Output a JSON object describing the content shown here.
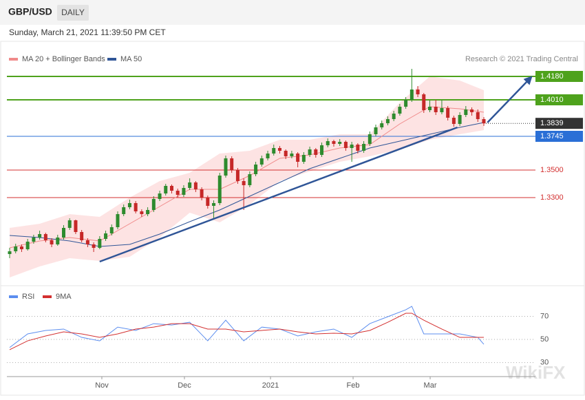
{
  "header": {
    "symbol": "GBP/USD",
    "timeframe": "DAILY",
    "datetime": "Sunday, March 21, 2021 11:39:50 PM CET"
  },
  "watermark": "WikiFX",
  "chart_data": [
    {
      "type": "candlestick",
      "source": "Research © 2021 Trading Central",
      "up_color": "#2e8b2e",
      "down_color": "#c62828",
      "xlim": [
        -0.46,
        87.6
      ],
      "ylim": [
        1.266,
        1.4435
      ],
      "open": [
        1.289,
        1.291,
        1.2945,
        1.2925,
        1.298,
        1.301,
        1.3035,
        1.299,
        1.296,
        1.301,
        1.308,
        1.3135,
        1.305,
        1.299,
        1.296,
        1.2935,
        1.3,
        1.304,
        1.3085,
        1.318,
        1.323,
        1.326,
        1.32,
        1.318,
        1.321,
        1.329,
        1.333,
        1.3385,
        1.335,
        1.332,
        1.337,
        1.341,
        1.336,
        1.33,
        1.324,
        1.326,
        1.346,
        1.3585,
        1.35,
        1.342,
        1.339,
        1.347,
        1.354,
        1.3585,
        1.362,
        1.366,
        1.364,
        1.36,
        1.362,
        1.356,
        1.361,
        1.365,
        1.361,
        1.368,
        1.371,
        1.369,
        1.3705,
        1.366,
        1.3685,
        1.364,
        1.369,
        1.376,
        1.381,
        1.384,
        1.387,
        1.391,
        1.396,
        1.401,
        1.4085,
        1.405,
        1.3935,
        1.396,
        1.392,
        1.395,
        1.388,
        1.3835,
        1.39,
        1.394,
        1.392,
        1.387
      ],
      "high": [
        1.2935,
        1.2965,
        1.296,
        1.3,
        1.303,
        1.306,
        1.3045,
        1.3005,
        1.303,
        1.31,
        1.315,
        1.314,
        1.3065,
        1.3005,
        1.2975,
        1.302,
        1.306,
        1.3105,
        1.32,
        1.325,
        1.3285,
        1.3275,
        1.3215,
        1.323,
        1.331,
        1.335,
        1.34,
        1.3395,
        1.3365,
        1.339,
        1.344,
        1.342,
        1.3375,
        1.3315,
        1.328,
        1.348,
        1.3605,
        1.36,
        1.3515,
        1.344,
        1.349,
        1.356,
        1.3605,
        1.364,
        1.3685,
        1.3675,
        1.365,
        1.364,
        1.363,
        1.363,
        1.367,
        1.366,
        1.37,
        1.373,
        1.372,
        1.3725,
        1.3715,
        1.3705,
        1.3695,
        1.371,
        1.378,
        1.383,
        1.386,
        1.389,
        1.393,
        1.398,
        1.403,
        1.4235,
        1.411,
        1.406,
        1.4005,
        1.401,
        1.401,
        1.3965,
        1.3895,
        1.392,
        1.3965,
        1.3955,
        1.394,
        1.3885
      ],
      "low": [
        1.286,
        1.2895,
        1.2905,
        1.2915,
        1.2965,
        1.2995,
        1.2975,
        1.294,
        1.295,
        1.2995,
        1.3065,
        1.3035,
        1.2975,
        1.294,
        1.2905,
        1.2925,
        1.2985,
        1.3025,
        1.307,
        1.3165,
        1.3215,
        1.3185,
        1.316,
        1.3165,
        1.3195,
        1.3275,
        1.3315,
        1.333,
        1.33,
        1.3305,
        1.3355,
        1.334,
        1.328,
        1.322,
        1.3145,
        1.3245,
        1.3445,
        1.348,
        1.34,
        1.321,
        1.3375,
        1.3455,
        1.3525,
        1.357,
        1.3605,
        1.362,
        1.358,
        1.3585,
        1.352,
        1.3545,
        1.3595,
        1.359,
        1.3595,
        1.3665,
        1.367,
        1.3675,
        1.364,
        1.356,
        1.362,
        1.3625,
        1.3675,
        1.3745,
        1.3795,
        1.3825,
        1.3855,
        1.3895,
        1.3945,
        1.3995,
        1.403,
        1.3915,
        1.392,
        1.39,
        1.3905,
        1.386,
        1.3815,
        1.382,
        1.3885,
        1.3895,
        1.385,
        1.382
      ],
      "close": [
        1.291,
        1.2945,
        1.2925,
        1.298,
        1.301,
        1.3035,
        1.299,
        1.296,
        1.301,
        1.308,
        1.3135,
        1.305,
        1.299,
        1.296,
        1.2935,
        1.3,
        1.304,
        1.3085,
        1.318,
        1.323,
        1.326,
        1.32,
        1.318,
        1.321,
        1.329,
        1.333,
        1.3385,
        1.335,
        1.332,
        1.337,
        1.341,
        1.336,
        1.33,
        1.324,
        1.326,
        1.346,
        1.3585,
        1.35,
        1.342,
        1.339,
        1.347,
        1.354,
        1.3585,
        1.362,
        1.366,
        1.364,
        1.36,
        1.362,
        1.356,
        1.361,
        1.365,
        1.361,
        1.368,
        1.371,
        1.369,
        1.3705,
        1.366,
        1.3685,
        1.364,
        1.369,
        1.376,
        1.381,
        1.384,
        1.387,
        1.391,
        1.396,
        1.401,
        1.4085,
        1.405,
        1.3935,
        1.396,
        1.392,
        1.395,
        1.388,
        1.3835,
        1.39,
        1.394,
        1.392,
        1.387,
        1.3839
      ],
      "indicator_x": [
        0,
        5,
        10,
        15,
        20,
        25,
        30,
        35,
        40,
        45,
        50,
        55,
        60,
        65,
        70,
        75,
        79
      ],
      "band_color": "#fde3e3",
      "series": [
        {
          "name": "MA 20 + Bollinger Bands",
          "color": "#f08a8a",
          "values": [
            1.2935,
            1.2985,
            1.301,
            1.2985,
            1.311,
            1.3235,
            1.336,
            1.336,
            1.346,
            1.3585,
            1.361,
            1.366,
            1.3685,
            1.3835,
            1.396,
            1.3945,
            1.392
          ],
          "upper": [
            1.308,
            1.311,
            1.318,
            1.316,
            1.33,
            1.342,
            1.348,
            1.362,
            1.364,
            1.372,
            1.372,
            1.376,
            1.376,
            1.399,
            1.418,
            1.415,
            1.408
          ],
          "lower": [
            1.272,
            1.28,
            1.286,
            1.284,
            1.287,
            1.301,
            1.319,
            1.312,
            1.325,
            1.342,
            1.349,
            1.356,
            1.36,
            1.365,
            1.372,
            1.376,
            1.379
          ]
        },
        {
          "name": "MA 50",
          "color": "#2f5597",
          "values": [
            1.3025,
            1.301,
            1.2985,
            1.2945,
            1.296,
            1.3035,
            1.3125,
            1.321,
            1.331,
            1.341,
            1.351,
            1.3585,
            1.366,
            1.371,
            1.376,
            1.381,
            1.3845
          ]
        }
      ],
      "levels": [
        {
          "value": 1.418,
          "label": "1.4180",
          "color": "#4ea21c",
          "style": "box"
        },
        {
          "value": 1.401,
          "label": "1.4010",
          "color": "#4ea21c",
          "style": "box"
        },
        {
          "value": 1.3839,
          "color": "#333333",
          "style": "current"
        },
        {
          "value": 1.3745,
          "color": "#2a6fd6",
          "style": "box"
        },
        {
          "value": 1.35,
          "label": "1.3500",
          "color": "#d32f2f",
          "style": "text"
        },
        {
          "value": 1.33,
          "label": "1.3300",
          "color": "#d32f2f",
          "style": "text"
        }
      ],
      "trendline_color": "#2f5597",
      "trendlines": [
        {
          "x": [
            15,
            74.6
          ],
          "y": [
            1.2835,
            1.381
          ]
        },
        {
          "x": [
            79.6,
            86.9
          ],
          "y": [
            1.3845,
            1.4175
          ],
          "arrow": true
        }
      ]
    },
    {
      "type": "line",
      "xlim": [
        -0.46,
        87.6
      ],
      "ylim": [
        19,
        90.6
      ],
      "yticks": [
        30,
        50,
        70
      ],
      "xticks": [
        {
          "value": 15.36,
          "label": "Nov"
        },
        {
          "value": 29.12,
          "label": "Dec"
        },
        {
          "value": 43.46,
          "label": "2021"
        },
        {
          "value": 57.22,
          "label": "Feb"
        },
        {
          "value": 70.06,
          "label": "Mar"
        }
      ],
      "x": [
        0,
        3,
        6,
        9,
        12,
        15,
        18,
        21,
        24,
        27,
        30,
        33,
        36,
        39,
        42,
        45,
        48,
        51,
        54,
        57,
        60,
        63,
        66,
        67,
        69,
        72,
        75,
        78,
        79
      ],
      "series": [
        {
          "name": "RSI",
          "color": "#5b8def",
          "values": [
            43,
            54.8,
            57.8,
            59,
            51.8,
            48.8,
            60.7,
            57.8,
            63.7,
            62.5,
            64.9,
            48.8,
            66.7,
            48.8,
            60.7,
            59,
            53,
            56.6,
            59,
            51.8,
            63.7,
            69.7,
            75.7,
            78.7,
            54.8,
            54.8,
            54.8,
            51.8,
            45.8
          ]
        },
        {
          "name": "9MA",
          "color": "#d32f2f",
          "values": [
            41.1,
            48.8,
            53,
            56.6,
            54.8,
            51.8,
            54.8,
            59,
            60.7,
            63.7,
            63.7,
            59,
            59,
            56.6,
            57.8,
            59,
            56.6,
            54.8,
            55.4,
            54.8,
            57.8,
            64.9,
            72.7,
            72.7,
            66.7,
            59,
            51.8,
            51.8,
            51.8
          ]
        }
      ]
    }
  ]
}
